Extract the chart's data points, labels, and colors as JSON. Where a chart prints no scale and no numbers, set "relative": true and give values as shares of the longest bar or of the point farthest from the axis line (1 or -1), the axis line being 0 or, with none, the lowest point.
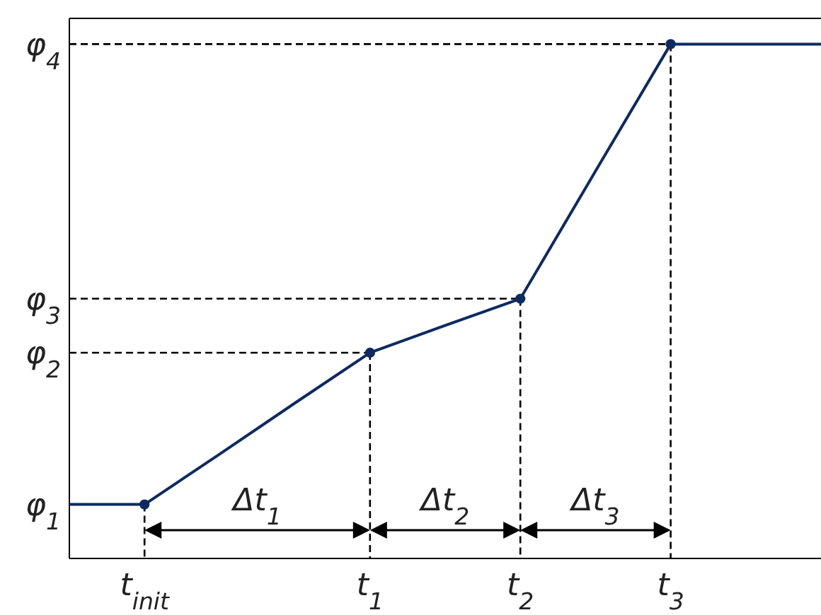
{
  "chart_data": {
    "type": "line",
    "relative": true,
    "categories": [
      null,
      "t$_{init}$",
      null,
      null,
      "t$_{1}$",
      null,
      "t$_{2}$",
      null,
      "t$_{3}$",
      null,
      null
    ],
    "series": [
      {
        "color": "#0d2a63",
        "marker": "none",
        "values": [
          0.105,
          0.105,
          0.203,
          0.302,
          0.4,
          0.453,
          0.505,
          0.753,
          1,
          1,
          1
        ]
      },
      {
        "type": "scatter",
        "color": "#0d2a63",
        "marker": "circle",
        "values": [
          null,
          0.105,
          null,
          null,
          0.4,
          null,
          0.505,
          null,
          1,
          null,
          null
        ]
      }
    ],
    "annotations": [
      "φ$_{1}$",
      "φ$_{2}$",
      "φ$_{3}$",
      "φ$_{4}$",
      "Δt$_{1}$",
      "Δt$_{2}$",
      "Δt$_{3}$"
    ]
  }
}
